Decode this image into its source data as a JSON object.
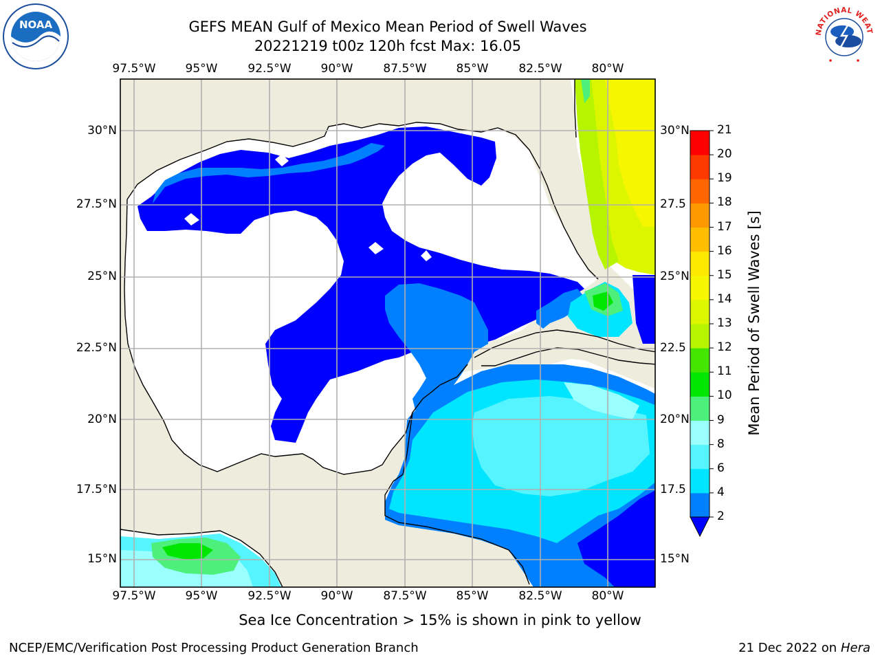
{
  "header": {
    "title_line1": "GEFS MEAN Gulf of Mexico Mean Period of Swell Waves",
    "title_line2": "20221219 t00z 120h fcst   Max: 16.05"
  },
  "logos": {
    "left": {
      "name": "noaa-logo",
      "text": "NOAA"
    },
    "right": {
      "name": "nws-logo",
      "text": "NATIONAL WEATHER SERVICE"
    }
  },
  "map": {
    "lon_labels": [
      "97.5°W",
      "95°W",
      "92.5°W",
      "90°W",
      "87.5°W",
      "85°W",
      "82.5°W",
      "80°W"
    ],
    "lat_labels_left": [
      "30°N",
      "27.5°N",
      "25°N",
      "22.5°N",
      "20°N",
      "17.5°N",
      "15°N"
    ],
    "lat_labels_right": [
      "30°N",
      "27.5",
      "25°N",
      "22.5",
      "20°N",
      "17.5",
      "15°N"
    ],
    "land_color": "#EEECDD",
    "no_data_color": "#FFFFFF",
    "gridline_color": "#B0B0B0"
  },
  "colorbar": {
    "label": "Mean Period of Swell Waves [s]",
    "ticks": [
      "2",
      "4",
      "6",
      "8",
      "9",
      "10",
      "11",
      "12",
      "13",
      "14",
      "15",
      "16",
      "17",
      "18",
      "19",
      "20",
      "21"
    ],
    "colors": [
      "#0080FF",
      "#00E5FF",
      "#55F4FF",
      "#99FFFF",
      "#4CF07A",
      "#00E600",
      "#44E600",
      "#B7F400",
      "#DCF600",
      "#F6F600",
      "#FFE800",
      "#FFBF00",
      "#FF9900",
      "#FF6600",
      "#FF3A00",
      "#FF0000"
    ],
    "under_color": "#0000FF"
  },
  "footer": {
    "note": "Sea Ice Concentration > 15% is shown in pink to yellow",
    "credit_left": "NCEP/EMC/Verification Post Processing Product Generation Branch",
    "credit_date": "21 Dec 2022 on",
    "credit_machine": "Hera"
  }
}
